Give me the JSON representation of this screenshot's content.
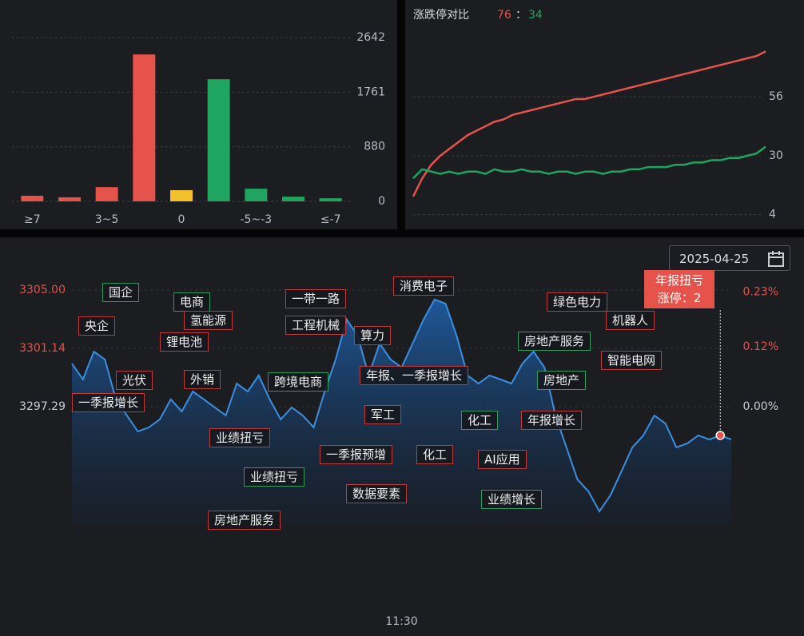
{
  "chart_data": [
    {
      "type": "bar",
      "categories": [
        "≥7",
        null,
        "3~5",
        null,
        "0",
        null,
        "-5~-3",
        null,
        "≤-7"
      ],
      "values": [
        90,
        65,
        230,
        2370,
        180,
        1970,
        205,
        75,
        50
      ],
      "colors": [
        "#e5534b",
        "#e5534b",
        "#e5534b",
        "#e5534b",
        "#f2c12e",
        "#1fa55f",
        "#1fa55f",
        "#1fa55f",
        "#1fa55f"
      ],
      "ylim": [
        0,
        2642
      ],
      "yticks": [
        0,
        880,
        1761,
        2642
      ],
      "grid": true
    },
    {
      "type": "line",
      "title": "涨跌停对比",
      "up_count": 76,
      "separator": "：",
      "down_count": 34,
      "series": [
        {
          "color": "#e5534b",
          "values": [
            12,
            20,
            26,
            30,
            33,
            36,
            39,
            41,
            43,
            45,
            46,
            48,
            49,
            50,
            51,
            52,
            53,
            54,
            55,
            55,
            56,
            57,
            58,
            59,
            60,
            61,
            62,
            63,
            64,
            65,
            66,
            67,
            68,
            69,
            70,
            71,
            72,
            73,
            74,
            76
          ]
        },
        {
          "color": "#1fa55f",
          "values": [
            20,
            24,
            23,
            22,
            23,
            22,
            23,
            23,
            22,
            24,
            23,
            23,
            24,
            23,
            23,
            22,
            23,
            23,
            22,
            23,
            23,
            22,
            23,
            23,
            24,
            24,
            25,
            25,
            25,
            26,
            26,
            27,
            27,
            28,
            28,
            29,
            29,
            30,
            31,
            34
          ]
        }
      ],
      "ylim": [
        0,
        80
      ],
      "yticks": [
        4,
        30,
        56
      ],
      "grid": true
    },
    {
      "type": "area",
      "date": "2025-04-25",
      "categories": [
        null,
        null,
        null,
        null,
        null,
        null,
        null,
        null,
        null,
        null,
        null,
        null,
        null,
        null,
        null,
        null,
        null,
        null,
        null,
        null,
        null,
        null,
        null,
        null,
        null,
        null,
        null,
        null,
        null,
        null,
        "11:30",
        null,
        null,
        null,
        null,
        null,
        null,
        null,
        null,
        null,
        null,
        null,
        null,
        null,
        null,
        null,
        null,
        null,
        null,
        null,
        null,
        null,
        null,
        null,
        null,
        null,
        null,
        null,
        null,
        null,
        null
      ],
      "values": [
        3300.14,
        3299.09,
        3300.93,
        3300.41,
        3297.77,
        3296.71,
        3295.65,
        3295.92,
        3296.45,
        3297.77,
        3296.97,
        3298.29,
        3297.77,
        3297.24,
        3296.71,
        3298.82,
        3298.29,
        3299.35,
        3297.77,
        3296.45,
        3297.24,
        3296.71,
        3295.92,
        3298.29,
        3300.41,
        3303.05,
        3301.99,
        3299.35,
        3301.46,
        3300.41,
        3299.88,
        3301.46,
        3303.05,
        3304.37,
        3304.1,
        3301.99,
        3299.35,
        3298.82,
        3299.35,
        3299.09,
        3298.82,
        3300.14,
        3300.93,
        3299.88,
        3296.71,
        3294.6,
        3292.48,
        3291.69,
        3290.37,
        3291.43,
        3293.01,
        3294.6,
        3295.39,
        3296.71,
        3296.18,
        3294.6,
        3294.86,
        3295.39,
        3295.12,
        3295.39,
        3295.12
      ],
      "color": "#3b8fe0",
      "ylim": [
        3289.5,
        3306
      ],
      "yticks": [
        3297.29,
        3301.14,
        {
          "value": 3305,
          "label": "3305.00"
        }
      ],
      "y2lim": [
        -0.236,
        0.264
      ],
      "y2ticks": [
        {
          "value": 0,
          "label": "0.00%"
        },
        {
          "value": 0.12,
          "label": "0.12%"
        },
        {
          "value": 0.23,
          "label": "0.23%"
        }
      ],
      "annotations": [
        "国企",
        "央企",
        "锂电池",
        "电商",
        "氢能源",
        "光伏",
        "外销",
        "一季报增长",
        "业绩扭亏",
        "业绩扭亏",
        "房地产服务",
        "一带一路",
        "工程机械",
        "跨境电商",
        "算力",
        "消费电子",
        "年报、一季报增长",
        "军工",
        "一季报预增",
        "数据要素",
        "化工",
        "化工",
        "AI应用",
        "业绩增长",
        "绿色电力",
        "房地产服务",
        "机器人",
        "智能电网",
        "房地产",
        "年报增长"
      ],
      "highlight": {
        "title": "年报扭亏",
        "label": "涨停：",
        "count": 2
      }
    }
  ]
}
